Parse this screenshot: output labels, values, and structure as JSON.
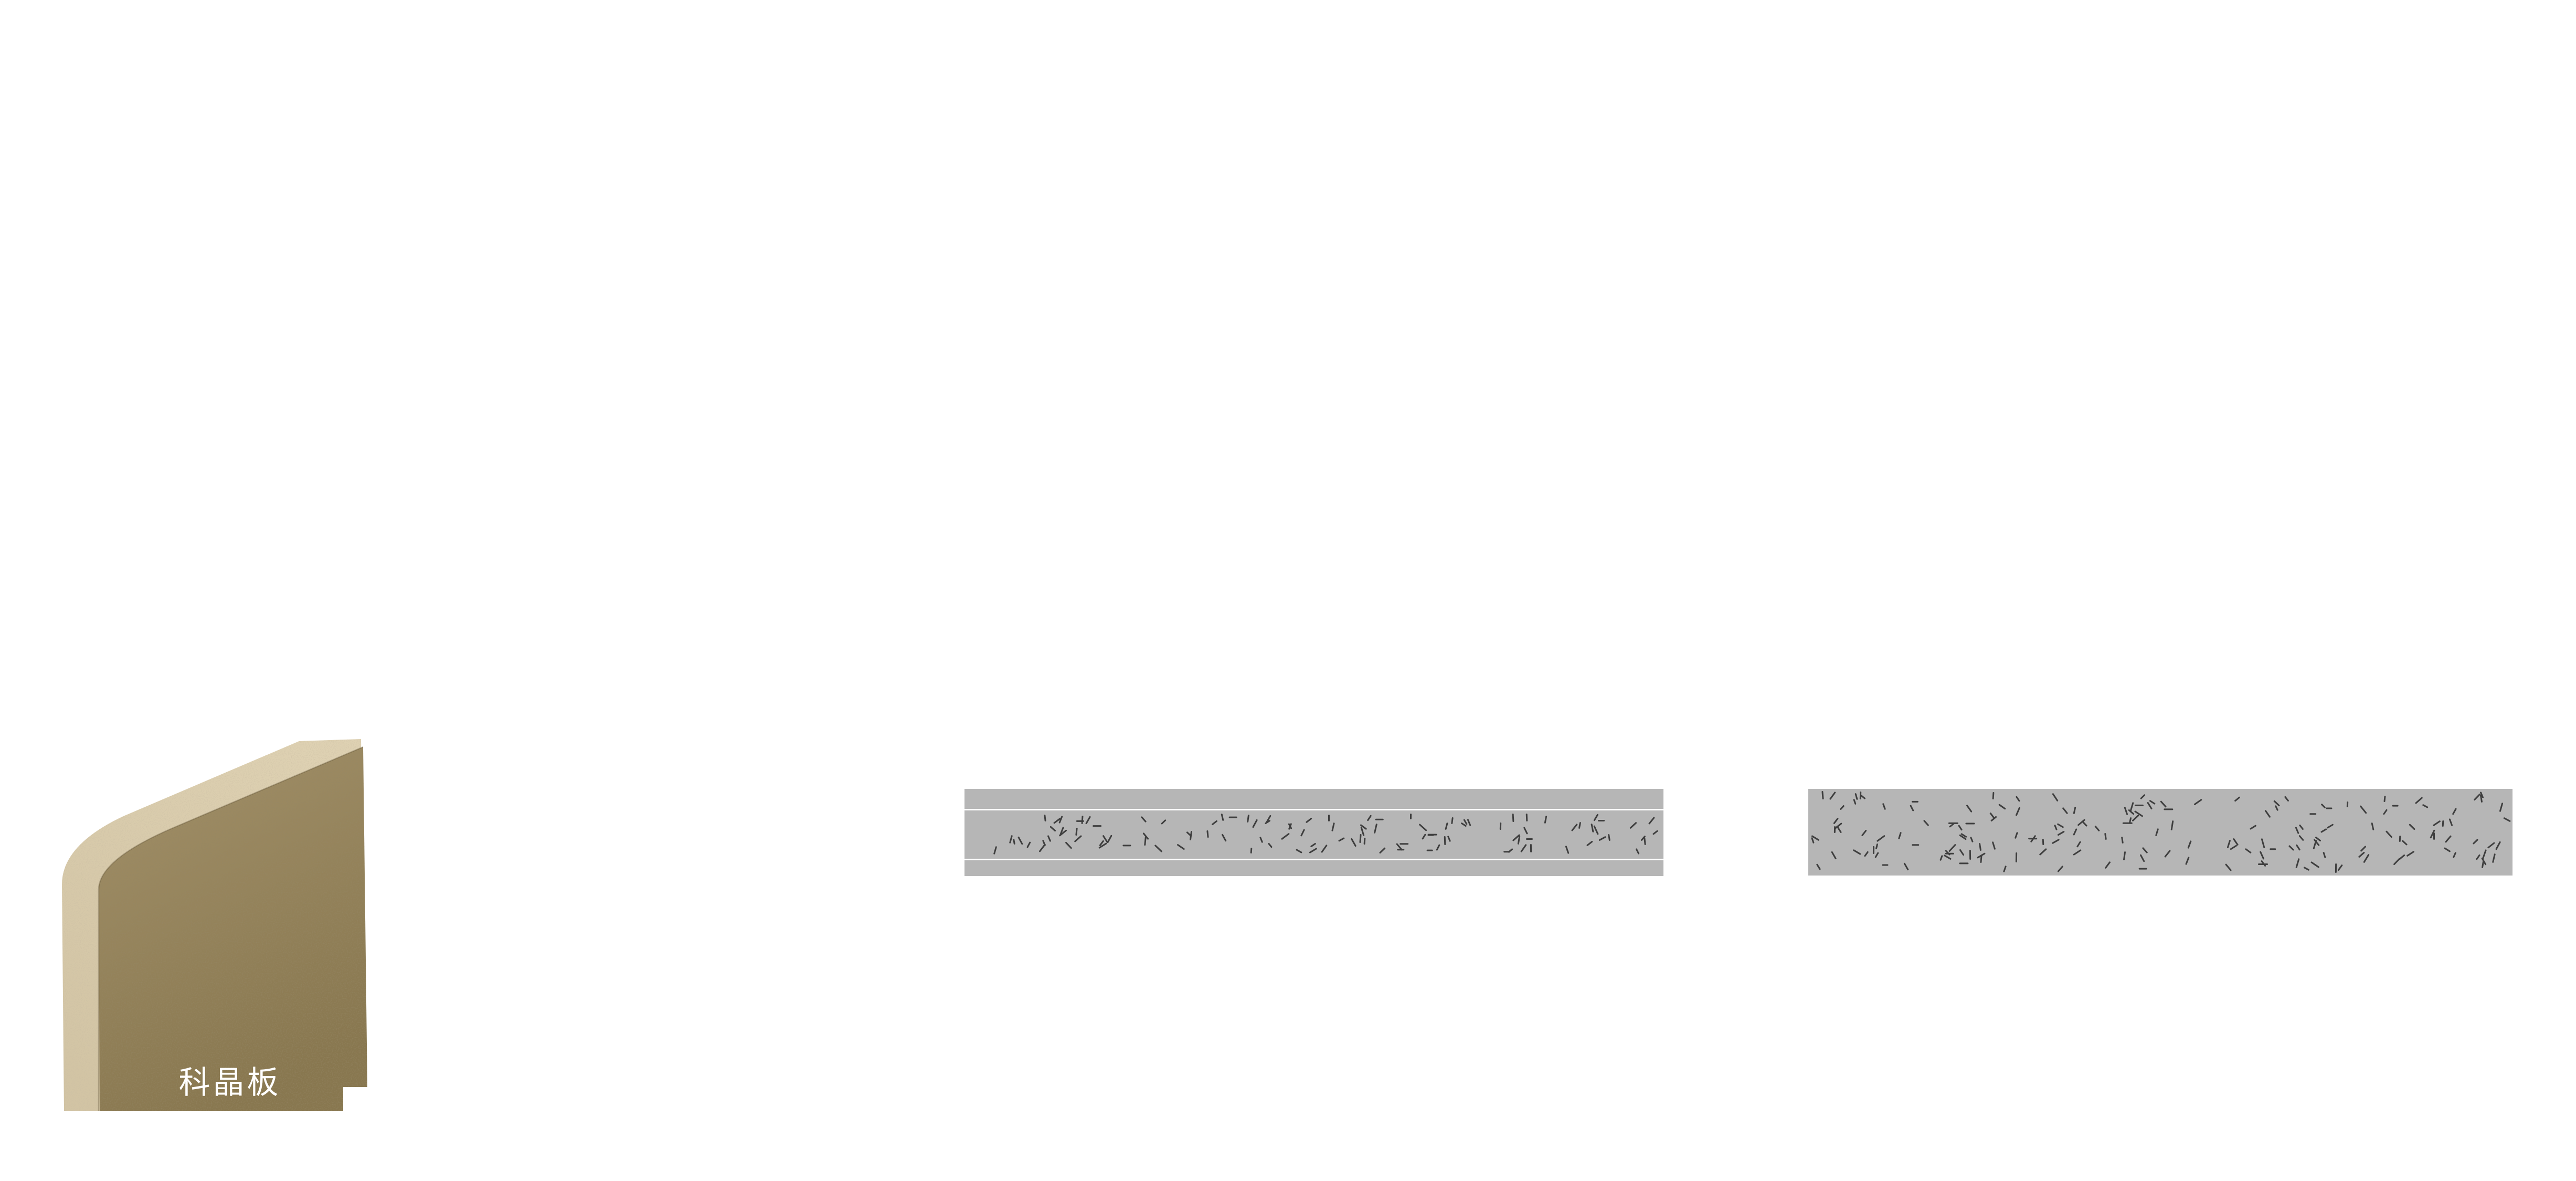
{
  "canvas": {
    "background": "#ffffff"
  },
  "board_sample": {
    "label": "科晶板",
    "label_color": "#ffffff",
    "face_color_top": "#a29068",
    "face_color_bottom": "#88774f",
    "edge_color": "#d2c4a4",
    "edge_highlight": "#ded1b2",
    "crease_color": "rgba(80,66,40,0.30)"
  },
  "cross_sections": {
    "layered": {
      "base_color": "#b6b6b6",
      "separator_color": "#ffffff",
      "separator_height": 3,
      "speckle_color": "#3e3e3e",
      "layers": [
        {
          "kind": "solid",
          "height": 38
        },
        {
          "kind": "speckled",
          "height": 92,
          "speckle_count": 112
        },
        {
          "kind": "solid",
          "height": 30
        }
      ]
    },
    "uniform": {
      "base_color": "#b6b6b6",
      "speckle_color": "#3e3e3e",
      "separator_height": 3,
      "layers": [
        {
          "kind": "speckled",
          "height": 165,
          "speckle_count": 178
        }
      ]
    }
  }
}
